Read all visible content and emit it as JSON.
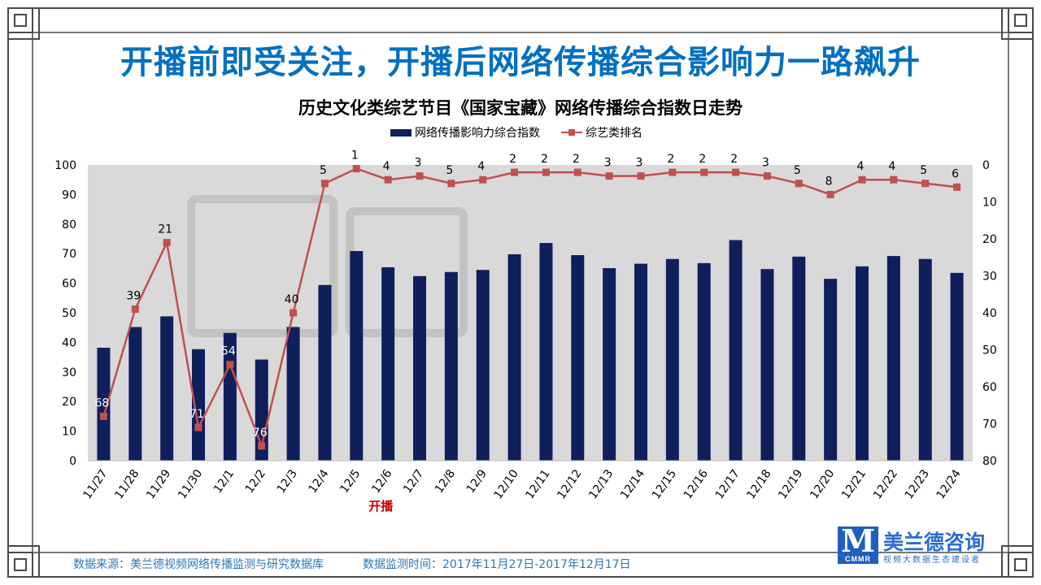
{
  "slide": {
    "title": "开播前即受关注，开播后网络传播综合影响力一路飙升"
  },
  "footer": {
    "source": "数据来源：美兰德视频网络传播监测与研究数据库",
    "period": "数据监测时间：2017年11月27日-2017年12月17日"
  },
  "brand": {
    "mark": "M",
    "mark_sub": "CMMR",
    "name": "美兰德咨询",
    "slogan": "视频大数据生态建设者"
  },
  "colors": {
    "title": "#0070c0",
    "bar": "#0f1f5c",
    "line": "#c0504d",
    "frame": "#4a4a4a",
    "plot_bg": "#d9d9d9"
  },
  "chart_data": {
    "type": "bar",
    "title": "历史文化类综艺节目《国家宝藏》网络传播综合指数日走势",
    "categories": [
      "11/27",
      "11/28",
      "11/29",
      "11/30",
      "12/1",
      "12/2",
      "12/3",
      "12/4",
      "12/5",
      "12/6",
      "12/7",
      "12/8",
      "12/9",
      "12/10",
      "12/11",
      "12/12",
      "12/13",
      "12/14",
      "12/15",
      "12/16",
      "12/17",
      "12/18",
      "12/19",
      "12/20",
      "12/21",
      "12/22",
      "12/23",
      "12/24"
    ],
    "series": [
      {
        "name": "网络传播影响力综合指数",
        "type": "bar",
        "axis": "left",
        "values": [
          38.2,
          45.2,
          48.8,
          37.7,
          43.2,
          34.2,
          45.2,
          59.4,
          70.9,
          65.4,
          62.4,
          63.8,
          64.5,
          69.8,
          73.6,
          69.5,
          65.1,
          66.6,
          68.2,
          66.8,
          74.6,
          64.8,
          69.0,
          61.5,
          65.7,
          69.2,
          68.2,
          63.5
        ]
      },
      {
        "name": "综艺类排名",
        "type": "line",
        "axis": "right",
        "values": [
          68,
          39,
          21,
          71,
          54,
          76,
          40,
          5,
          1,
          4,
          3,
          5,
          4,
          2,
          2,
          2,
          3,
          3,
          2,
          2,
          2,
          3,
          5,
          8,
          4,
          4,
          5,
          6
        ],
        "labels": [
          "68",
          "39",
          "21",
          "71",
          "54",
          "76",
          "40",
          "5",
          "1",
          "4",
          "3",
          "5",
          "4",
          "2",
          "2",
          "2",
          "3",
          "3",
          "2",
          "2",
          "2",
          "3",
          "5",
          "8",
          "4",
          "4",
          "5",
          "6"
        ]
      }
    ],
    "y_left": {
      "range": [
        0,
        100
      ],
      "ticks": [
        0,
        10,
        20,
        30,
        40,
        50,
        60,
        70,
        80,
        90,
        100
      ]
    },
    "y_right": {
      "range": [
        0,
        80
      ],
      "reversed": true,
      "ticks": [
        0,
        10,
        20,
        30,
        40,
        50,
        60,
        70,
        80
      ]
    },
    "annotation": {
      "category": "12/5",
      "text": "开播"
    },
    "legend_position": "top-center",
    "grid": false
  }
}
